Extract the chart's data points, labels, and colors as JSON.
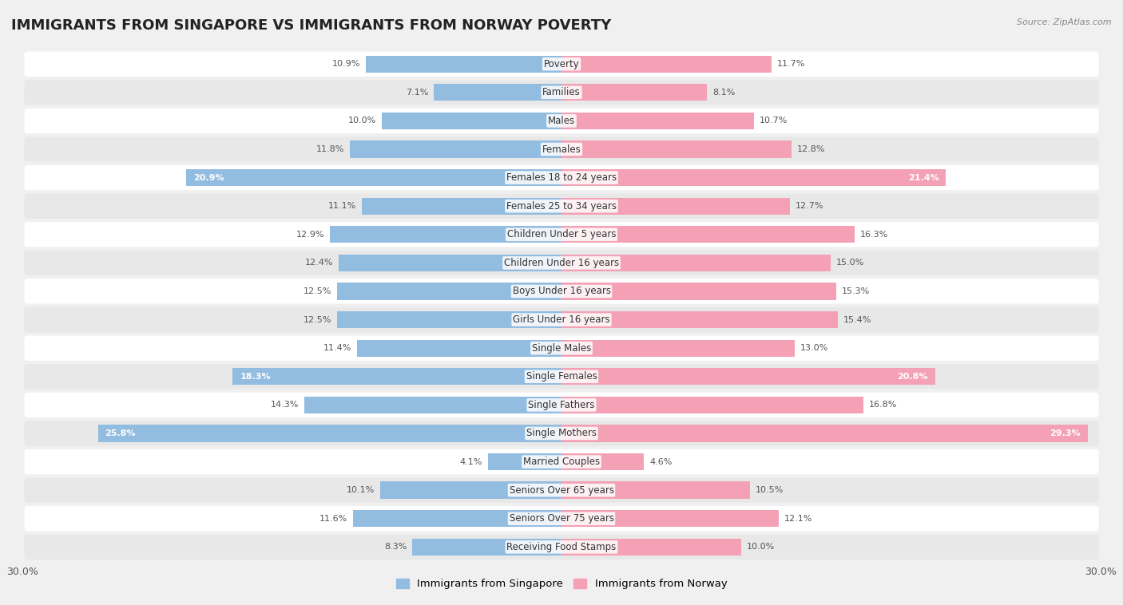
{
  "title": "IMMIGRANTS FROM SINGAPORE VS IMMIGRANTS FROM NORWAY POVERTY",
  "source": "Source: ZipAtlas.com",
  "categories": [
    "Poverty",
    "Families",
    "Males",
    "Females",
    "Females 18 to 24 years",
    "Females 25 to 34 years",
    "Children Under 5 years",
    "Children Under 16 years",
    "Boys Under 16 years",
    "Girls Under 16 years",
    "Single Males",
    "Single Females",
    "Single Fathers",
    "Single Mothers",
    "Married Couples",
    "Seniors Over 65 years",
    "Seniors Over 75 years",
    "Receiving Food Stamps"
  ],
  "singapore_values": [
    10.9,
    7.1,
    10.0,
    11.8,
    20.9,
    11.1,
    12.9,
    12.4,
    12.5,
    12.5,
    11.4,
    18.3,
    14.3,
    25.8,
    4.1,
    10.1,
    11.6,
    8.3
  ],
  "norway_values": [
    11.7,
    8.1,
    10.7,
    12.8,
    21.4,
    12.7,
    16.3,
    15.0,
    15.3,
    15.4,
    13.0,
    20.8,
    16.8,
    29.3,
    4.6,
    10.5,
    12.1,
    10.0
  ],
  "singapore_color": "#92bce0",
  "norway_color": "#f4a0b5",
  "singapore_label": "Immigrants from Singapore",
  "norway_label": "Immigrants from Norway",
  "xlim": 30.0,
  "bar_height": 0.6,
  "background_color": "#f0f0f0",
  "row_color_odd": "#ffffff",
  "row_color_even": "#e8e8e8",
  "title_fontsize": 13,
  "label_fontsize": 8.5,
  "value_fontsize": 8.0,
  "highlight_threshold": 17.0
}
